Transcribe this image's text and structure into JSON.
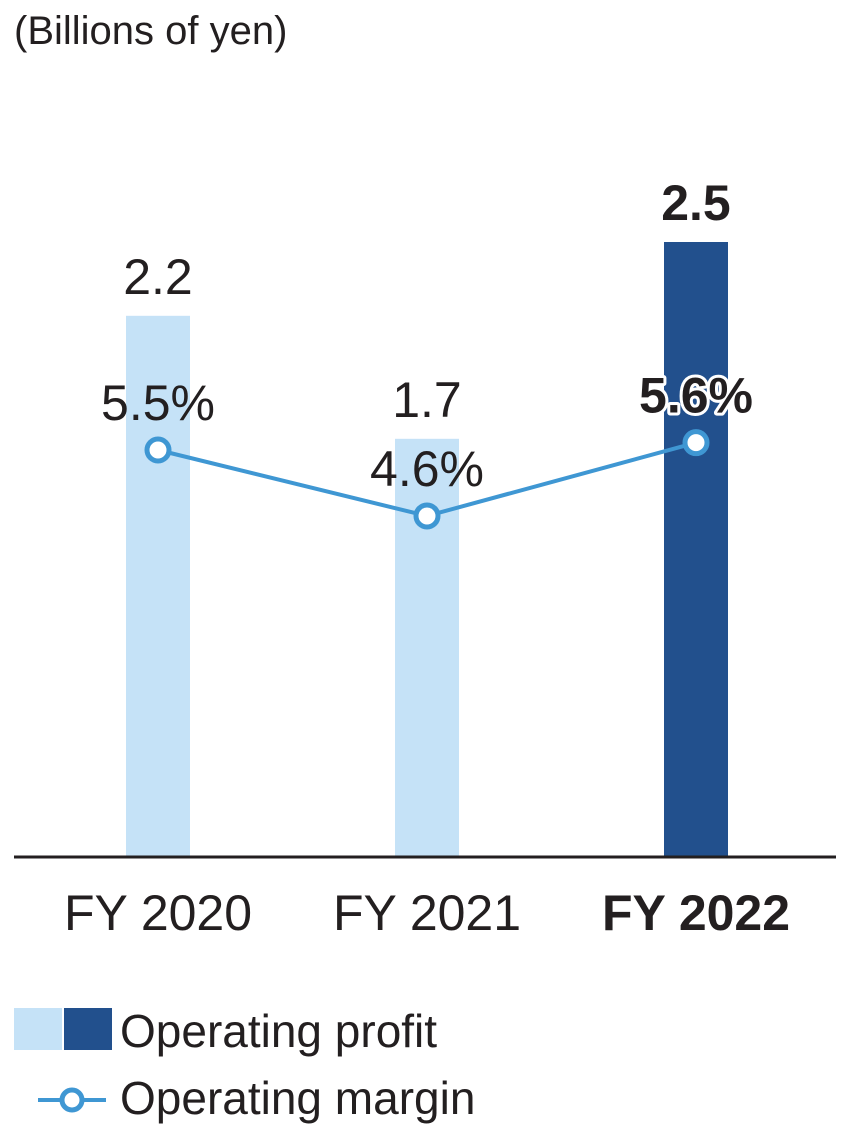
{
  "chart_data": {
    "type": "bar",
    "unit_label": "(Billions of yen)",
    "categories": [
      "FY 2020",
      "FY 2021",
      "FY 2022"
    ],
    "highlight_index": 2,
    "series": [
      {
        "name": "Operating profit",
        "kind": "bar",
        "values": [
          2.2,
          1.7,
          2.5
        ],
        "labels": [
          "2.2",
          "1.7",
          "2.5"
        ]
      },
      {
        "name": "Operating margin",
        "kind": "line",
        "unit": "%",
        "values": [
          5.5,
          4.6,
          5.6
        ],
        "labels": [
          "5.5%",
          "4.6%",
          "5.6%"
        ]
      }
    ],
    "ylim_profit": [
      0,
      2.5
    ],
    "legend": [
      "Operating profit",
      "Operating margin"
    ],
    "colors": {
      "bar": "#c5e2f7",
      "bar_highlight": "#22508d",
      "line": "#3f97d3",
      "marker_fill": "#ffffff",
      "axis": "#231f20",
      "text": "#231f20"
    }
  }
}
